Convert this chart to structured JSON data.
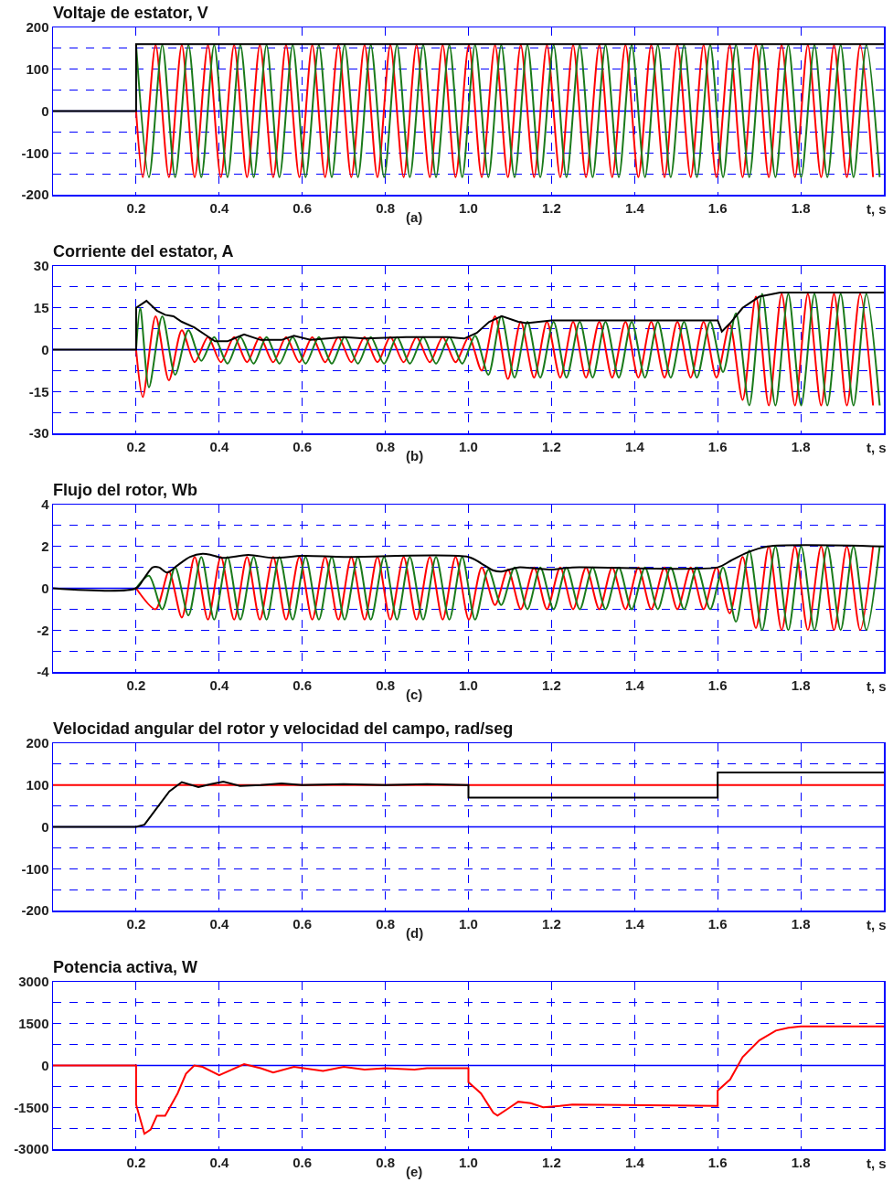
{
  "chart_data": [
    {
      "type": "line",
      "title": "Voltaje de estator, V",
      "ref_lines": [
        {
          "axis": "y",
          "value": 0,
          "color": "#0000ff"
        }
      ],
      "xlabel": "t, s",
      "annotations": [
        "(a)"
      ],
      "xlim": [
        0,
        2
      ],
      "xticks": [
        {
          "value": 0.2,
          "label": "0.2"
        },
        {
          "value": 0.4,
          "label": "0.4"
        },
        {
          "value": 0.6,
          "label": "0.6"
        },
        {
          "value": 0.8,
          "label": "0.8"
        },
        {
          "value": 1,
          "label": "1.0"
        },
        {
          "value": 1.2,
          "label": "1.2"
        },
        {
          "value": 1.4,
          "label": "1.4"
        },
        {
          "value": 1.6,
          "label": "1.6"
        },
        {
          "value": 1.8,
          "label": "1.8"
        }
      ],
      "ylim": [
        -200,
        200
      ],
      "yticks": [
        -200,
        {
          "value": -150,
          "label": null
        },
        -100,
        {
          "value": -50,
          "label": null
        },
        0,
        {
          "value": 50,
          "label": null
        },
        100,
        {
          "value": 150,
          "label": null
        },
        200
      ],
      "grid": true,
      "series": [
        {
          "color": "#ff0000",
          "x": [
            0.2,
            0.216,
            0.247,
            0.279,
            0.31,
            0.341,
            0.373,
            0.404,
            0.436,
            0.467,
            0.498,
            0.53,
            0.561,
            0.593,
            0.624,
            0.655,
            0.687,
            0.718,
            0.75,
            0.781,
            0.812,
            0.844,
            0.875,
            0.907,
            0.938,
            0.969,
            1.001,
            1.032,
            1.064,
            1.095,
            1.126,
            1.158,
            1.189,
            1.221,
            1.252,
            1.283,
            1.315,
            1.346,
            1.378,
            1.409,
            1.44,
            1.472,
            1.503,
            1.535,
            1.566,
            1.597,
            1.629,
            1.66,
            1.692,
            1.723,
            1.754,
            1.786,
            1.817,
            1.849,
            1.88,
            1.911,
            1.943,
            1.974
          ],
          "values": [
            0,
            -158,
            158,
            -158,
            158,
            -158,
            158,
            -158,
            158,
            -158,
            158,
            -158,
            158,
            -158,
            158,
            -158,
            158,
            -158,
            158,
            -158,
            158,
            -158,
            158,
            -158,
            158,
            -158,
            158,
            -158,
            158,
            -158,
            158,
            -158,
            158,
            -158,
            158,
            -158,
            158,
            -158,
            158,
            -158,
            158,
            -158,
            158,
            -158,
            158,
            -158,
            158,
            -158,
            158,
            -158,
            158,
            -158,
            158,
            -158,
            158,
            -158,
            158,
            -158
          ]
        },
        {
          "color": "#1a7a1a",
          "x": [
            0.2,
            0.231,
            0.263,
            0.294,
            0.326,
            0.357,
            0.388,
            0.42,
            0.451,
            0.483,
            0.514,
            0.545,
            0.577,
            0.608,
            0.64,
            0.671,
            0.702,
            0.734,
            0.765,
            0.797,
            0.828,
            0.859,
            0.891,
            0.922,
            0.954,
            0.985,
            1.016,
            1.048,
            1.079,
            1.111,
            1.142,
            1.173,
            1.205,
            1.236,
            1.268,
            1.299,
            1.33,
            1.362,
            1.393,
            1.425,
            1.456,
            1.487,
            1.519,
            1.55,
            1.582,
            1.613,
            1.644,
            1.676,
            1.707,
            1.739,
            1.77,
            1.801,
            1.833,
            1.864,
            1.896,
            1.927,
            1.958,
            1.99
          ],
          "values": [
            158,
            -158,
            158,
            -158,
            158,
            -158,
            158,
            -158,
            158,
            -158,
            158,
            -158,
            158,
            -158,
            158,
            -158,
            158,
            -158,
            158,
            -158,
            158,
            -158,
            158,
            -158,
            158,
            -158,
            158,
            -158,
            158,
            -158,
            158,
            -158,
            158,
            -158,
            158,
            -158,
            158,
            -158,
            158,
            -158,
            158,
            -158,
            158,
            -158,
            158,
            -158,
            158,
            -158,
            158,
            -158,
            158,
            -158,
            158,
            -158,
            158,
            -158,
            158,
            -158
          ]
        },
        {
          "color": "#000000",
          "x": [
            0,
            0.2,
            0.2,
            2
          ],
          "values": [
            0,
            0,
            160,
            160
          ]
        }
      ]
    },
    {
      "type": "line",
      "title": "Corriente del estator, A",
      "ref_lines": [
        {
          "axis": "y",
          "value": 0,
          "color": "#0000ff"
        }
      ],
      "xlabel": "t, s",
      "annotations": [
        "(b)"
      ],
      "xlim": [
        0,
        2
      ],
      "xticks": [
        {
          "value": 0.2,
          "label": "0.2"
        },
        {
          "value": 0.4,
          "label": "0.4"
        },
        {
          "value": 0.6,
          "label": "0.6"
        },
        {
          "value": 0.8,
          "label": "0.8"
        },
        {
          "value": 1,
          "label": "1.0"
        },
        {
          "value": 1.2,
          "label": "1.2"
        },
        {
          "value": 1.4,
          "label": "1.4"
        },
        {
          "value": 1.6,
          "label": "1.6"
        },
        {
          "value": 1.8,
          "label": "1.8"
        }
      ],
      "ylim": [
        -30,
        30
      ],
      "yticks": [
        -30,
        {
          "value": -22.5,
          "label": null
        },
        -15,
        {
          "value": -7.5,
          "label": null
        },
        0,
        {
          "value": 7.5,
          "label": null
        },
        15,
        {
          "value": 22.5,
          "label": null
        },
        30
      ],
      "grid": true,
      "series": [
        {
          "color": "#ff0000",
          "x": [
            0.2,
            0.216,
            0.247,
            0.279,
            0.31,
            0.341,
            0.373,
            0.404,
            0.436,
            0.467,
            0.498,
            0.53,
            0.561,
            0.593,
            0.624,
            0.655,
            0.687,
            0.718,
            0.75,
            0.781,
            0.812,
            0.844,
            0.875,
            0.907,
            0.938,
            0.969,
            1.001,
            1.032,
            1.064,
            1.095,
            1.126,
            1.158,
            1.189,
            1.221,
            1.252,
            1.283,
            1.315,
            1.346,
            1.378,
            1.409,
            1.44,
            1.472,
            1.503,
            1.535,
            1.566,
            1.597,
            1.629,
            1.66,
            1.692,
            1.723,
            1.754,
            1.786,
            1.817,
            1.849,
            1.88,
            1.911,
            1.943,
            1.974
          ],
          "values": [
            0,
            -17,
            12,
            -11,
            7,
            -4.5,
            4.5,
            -4.5,
            4.5,
            -4.5,
            4.5,
            -4.5,
            4.5,
            -4.5,
            4.5,
            -4.5,
            4.5,
            -4.5,
            4.5,
            -4.5,
            4.5,
            -4.5,
            4.5,
            -4.5,
            4.5,
            -4.5,
            4.5,
            -7.5,
            12,
            -10.5,
            10,
            -10,
            10,
            -10,
            10,
            -10,
            10,
            -10,
            10,
            -10,
            10,
            -10,
            10,
            -10,
            10,
            -10,
            9,
            -18,
            19,
            -20,
            20,
            -20,
            20,
            -20,
            20,
            -20,
            20,
            -20
          ]
        },
        {
          "color": "#1a7a1a",
          "x": [
            0.2,
            0.21,
            0.231,
            0.263,
            0.294,
            0.326,
            0.357,
            0.388,
            0.42,
            0.451,
            0.483,
            0.514,
            0.545,
            0.577,
            0.608,
            0.64,
            0.671,
            0.702,
            0.734,
            0.765,
            0.797,
            0.828,
            0.859,
            0.891,
            0.922,
            0.954,
            0.985,
            1.016,
            1.048,
            1.079,
            1.111,
            1.142,
            1.173,
            1.205,
            1.236,
            1.268,
            1.299,
            1.33,
            1.362,
            1.393,
            1.425,
            1.456,
            1.487,
            1.519,
            1.55,
            1.582,
            1.613,
            1.644,
            1.676,
            1.707,
            1.739,
            1.77,
            1.801,
            1.833,
            1.864,
            1.896,
            1.927,
            1.958,
            1.99
          ],
          "values": [
            0,
            15,
            -13.5,
            12,
            -9,
            7,
            -4,
            4.5,
            -5,
            4.5,
            -5,
            4.5,
            -5,
            4.5,
            -5,
            4.5,
            -5,
            4.5,
            -5,
            4.5,
            -5,
            4.5,
            -5,
            4.5,
            -5,
            4.5,
            -5,
            5,
            -9,
            12,
            -10,
            10,
            -10,
            10,
            -10,
            10,
            -10,
            10,
            -10,
            10,
            -10,
            10,
            -10,
            10,
            -10,
            10,
            -8,
            13,
            -20,
            20,
            -20,
            20,
            -20,
            20,
            -20,
            20,
            -20,
            20,
            -20
          ]
        },
        {
          "color": "#000000",
          "x": [
            0,
            0.2,
            0.2,
            0.225,
            0.25,
            0.27,
            0.29,
            0.31,
            0.34,
            0.37,
            0.39,
            0.42,
            0.46,
            0.5,
            0.55,
            0.58,
            0.62,
            0.7,
            0.75,
            0.85,
            0.95,
            0.99,
            1.02,
            1.05,
            1.08,
            1.12,
            1.14,
            1.2,
            1.6,
            1.61,
            1.63,
            1.66,
            1.7,
            1.75,
            2
          ],
          "values": [
            0,
            0,
            15,
            17.5,
            14,
            12.5,
            12,
            10,
            8,
            5,
            3,
            3,
            5.5,
            3.5,
            3.5,
            5,
            3.5,
            4.5,
            4,
            4.5,
            4.5,
            4,
            6,
            10,
            12,
            10,
            9.5,
            10.5,
            10.5,
            6.5,
            9.5,
            15,
            19,
            20.5,
            20.5
          ]
        }
      ]
    },
    {
      "type": "line",
      "title": "Flujo del rotor, Wb",
      "ref_lines": [
        {
          "axis": "y",
          "value": 0,
          "color": "#0000ff"
        }
      ],
      "xlabel": "t, s",
      "annotations": [
        "(c)"
      ],
      "xlim": [
        0,
        2
      ],
      "xticks": [
        {
          "value": 0.2,
          "label": "0.2"
        },
        {
          "value": 0.4,
          "label": "0.4"
        },
        {
          "value": 0.6,
          "label": "0.6"
        },
        {
          "value": 0.8,
          "label": "0.8"
        },
        {
          "value": 1,
          "label": "1.0"
        },
        {
          "value": 1.2,
          "label": "1.2"
        },
        {
          "value": 1.4,
          "label": "1.4"
        },
        {
          "value": 1.6,
          "label": "1.6"
        },
        {
          "value": 1.8,
          "label": "1.8"
        }
      ],
      "ylim": [
        -4,
        4
      ],
      "yticks": [
        -4,
        {
          "value": -3,
          "label": null
        },
        -2,
        {
          "value": -1,
          "label": null
        },
        0,
        {
          "value": 1,
          "label": null
        },
        2,
        {
          "value": 3,
          "label": null
        },
        4
      ],
      "grid": true,
      "series": [
        {
          "color": "#ff0000",
          "x": [
            0.2,
            0.247,
            0.279,
            0.31,
            0.341,
            0.373,
            0.404,
            0.436,
            0.467,
            0.498,
            0.53,
            0.561,
            0.593,
            0.624,
            0.655,
            0.687,
            0.718,
            0.75,
            0.781,
            0.812,
            0.844,
            0.875,
            0.907,
            0.938,
            0.969,
            1.001,
            1.032,
            1.064,
            1.095,
            1.126,
            1.158,
            1.189,
            1.221,
            1.252,
            1.283,
            1.315,
            1.346,
            1.378,
            1.409,
            1.44,
            1.472,
            1.503,
            1.535,
            1.566,
            1.597,
            1.629,
            1.66,
            1.692,
            1.723,
            1.754,
            1.786,
            1.817,
            1.849,
            1.88,
            1.911,
            1.943,
            1.974
          ],
          "values": [
            0,
            -1,
            0.8,
            -1.4,
            1.5,
            -1.5,
            1.5,
            -1.5,
            1.5,
            -1.5,
            1.5,
            -1.5,
            1.5,
            -1.5,
            1.5,
            -1.5,
            1.5,
            -1.5,
            1.5,
            -1.5,
            1.5,
            -1.5,
            1.5,
            -1.5,
            1.5,
            -1.5,
            1,
            -0.8,
            0.9,
            -1,
            1,
            -1,
            1,
            -1,
            1,
            -1,
            1,
            -1,
            1,
            -1,
            1,
            -1,
            1,
            -1,
            1,
            -1.2,
            1.5,
            -1.9,
            2,
            -2,
            2,
            -2,
            2,
            -2,
            2,
            -2,
            2
          ]
        },
        {
          "color": "#1a7a1a",
          "x": [
            0.2,
            0.231,
            0.263,
            0.294,
            0.326,
            0.357,
            0.388,
            0.42,
            0.451,
            0.483,
            0.514,
            0.545,
            0.577,
            0.608,
            0.64,
            0.671,
            0.702,
            0.734,
            0.765,
            0.797,
            0.828,
            0.859,
            0.891,
            0.922,
            0.954,
            0.985,
            1.016,
            1.048,
            1.079,
            1.111,
            1.142,
            1.173,
            1.205,
            1.236,
            1.268,
            1.299,
            1.33,
            1.362,
            1.393,
            1.425,
            1.456,
            1.487,
            1.519,
            1.55,
            1.582,
            1.613,
            1.644,
            1.676,
            1.707,
            1.739,
            1.77,
            1.801,
            1.833,
            1.864,
            1.896,
            1.927,
            1.958,
            1.99
          ],
          "values": [
            0,
            0.6,
            -1,
            1,
            -1.3,
            1.5,
            -1.5,
            1.5,
            -1.5,
            1.5,
            -1.5,
            1.5,
            -1.5,
            1.5,
            -1.5,
            1.5,
            -1.5,
            1.5,
            -1.5,
            1.5,
            -1.5,
            1.5,
            -1.5,
            1.5,
            -1.5,
            1.5,
            -1.5,
            0.9,
            -0.8,
            1,
            -1,
            1,
            -1,
            1,
            -1,
            1,
            -1,
            1,
            -1,
            1,
            -1,
            1,
            -1,
            1,
            -1,
            1,
            -1.6,
            1.8,
            -2,
            2,
            -2,
            2,
            -2,
            2,
            -2,
            2,
            -2,
            2
          ]
        },
        {
          "color": "#000000",
          "x": [
            0,
            0.2,
            0.22,
            0.24,
            0.255,
            0.275,
            0.3,
            0.33,
            0.36,
            0.38,
            0.41,
            0.47,
            0.53,
            0.6,
            0.7,
            1,
            1.03,
            1.06,
            1.08,
            1.12,
            1.16,
            1.2,
            1.25,
            1.6,
            1.63,
            1.67,
            1.72,
            2
          ],
          "values": [
            0,
            0,
            0.5,
            1,
            1,
            0.75,
            1.1,
            1.5,
            1.65,
            1.6,
            1.45,
            1.6,
            1.45,
            1.55,
            1.5,
            1.5,
            1.2,
            0.85,
            0.8,
            1,
            0.95,
            0.9,
            1,
            1,
            1.3,
            1.7,
            2,
            2
          ]
        }
      ]
    },
    {
      "type": "line",
      "title": "Velocidad angular del rotor y velocidad del campo, rad/seg",
      "ref_lines": [
        {
          "axis": "y",
          "value": 0,
          "color": "#0000ff"
        }
      ],
      "xlabel": "t, s",
      "annotations": [
        "(d)"
      ],
      "xlim": [
        0,
        2
      ],
      "xticks": [
        {
          "value": 0.2,
          "label": "0.2"
        },
        {
          "value": 0.4,
          "label": "0.4"
        },
        {
          "value": 0.6,
          "label": "0.6"
        },
        {
          "value": 0.8,
          "label": "0.8"
        },
        {
          "value": 1,
          "label": "1.0"
        },
        {
          "value": 1.2,
          "label": "1.2"
        },
        {
          "value": 1.4,
          "label": "1.4"
        },
        {
          "value": 1.6,
          "label": "1.6"
        },
        {
          "value": 1.8,
          "label": "1.8"
        }
      ],
      "ylim": [
        -200,
        200
      ],
      "yticks": [
        -200,
        {
          "value": -150,
          "label": null
        },
        -100,
        {
          "value": -50,
          "label": null
        },
        0,
        {
          "value": 50,
          "label": null
        },
        100,
        {
          "value": 150,
          "label": null
        },
        200
      ],
      "grid": true,
      "series": [
        {
          "color": "#ff0000",
          "x": [
            0,
            2
          ],
          "values": [
            100,
            100
          ]
        },
        {
          "color": "#000000",
          "x": [
            0,
            0.2,
            0.22,
            0.25,
            0.28,
            0.31,
            0.35,
            0.38,
            0.41,
            0.45,
            0.5,
            0.55,
            0.6,
            0.7,
            0.8,
            0.9,
            1,
            1,
            1.6,
            1.6,
            2
          ],
          "values": [
            0,
            0,
            5,
            45,
            85,
            107,
            95,
            102,
            108,
            98,
            100,
            104,
            100,
            102,
            100,
            102,
            100,
            70,
            70,
            130,
            130
          ]
        }
      ]
    },
    {
      "type": "line",
      "title": "Potencia activa, W",
      "ref_lines": [
        {
          "axis": "y",
          "value": 0,
          "color": "#0000ff"
        }
      ],
      "xlabel": "t, s",
      "annotations": [
        "(e)"
      ],
      "xlim": [
        0,
        2
      ],
      "xticks": [
        {
          "value": 0.2,
          "label": "0.2"
        },
        {
          "value": 0.4,
          "label": "0.4"
        },
        {
          "value": 0.6,
          "label": "0.6"
        },
        {
          "value": 0.8,
          "label": "0.8"
        },
        {
          "value": 1,
          "label": "1.0"
        },
        {
          "value": 1.2,
          "label": "1.2"
        },
        {
          "value": 1.4,
          "label": "1.4"
        },
        {
          "value": 1.6,
          "label": "1.6"
        },
        {
          "value": 1.8,
          "label": "1.8"
        }
      ],
      "ylim": [
        -3000,
        3000
      ],
      "yticks": [
        -3000,
        {
          "value": -2250,
          "label": null
        },
        -1500,
        {
          "value": -750,
          "label": null
        },
        0,
        {
          "value": 750,
          "label": null
        },
        1500,
        {
          "value": 2250,
          "label": null
        },
        3000
      ],
      "grid": true,
      "series": [
        {
          "color": "#ff0000",
          "x": [
            0,
            0.2,
            0.2,
            0.22,
            0.235,
            0.25,
            0.27,
            0.3,
            0.32,
            0.34,
            0.36,
            0.4,
            0.43,
            0.46,
            0.5,
            0.53,
            0.58,
            0.65,
            0.7,
            0.75,
            0.8,
            0.87,
            0.9,
            1,
            1,
            1.03,
            1.06,
            1.07,
            1.1,
            1.12,
            1.15,
            1.18,
            1.22,
            1.25,
            1.6,
            1.6,
            1.63,
            1.66,
            1.7,
            1.74,
            1.77,
            1.8,
            2
          ],
          "values": [
            0,
            0,
            -1400,
            -2450,
            -2300,
            -1800,
            -1800,
            -1000,
            -300,
            0,
            -50,
            -350,
            -150,
            50,
            -100,
            -250,
            -50,
            -200,
            -50,
            -150,
            -100,
            -150,
            -100,
            -100,
            -600,
            -1000,
            -1700,
            -1800,
            -1500,
            -1300,
            -1350,
            -1500,
            -1450,
            -1400,
            -1450,
            -900,
            -500,
            300,
            900,
            1250,
            1350,
            1400,
            1400
          ]
        }
      ]
    }
  ]
}
